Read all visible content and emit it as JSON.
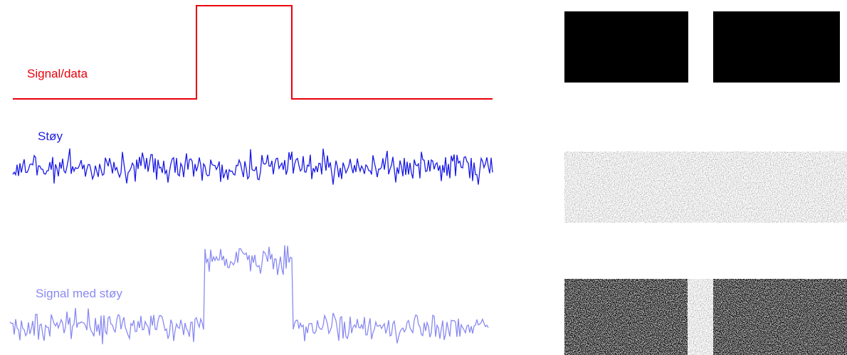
{
  "labels": {
    "signal": "Signal/data",
    "noise": "Støy",
    "signal_with_noise": "Signal med støy"
  }
}
